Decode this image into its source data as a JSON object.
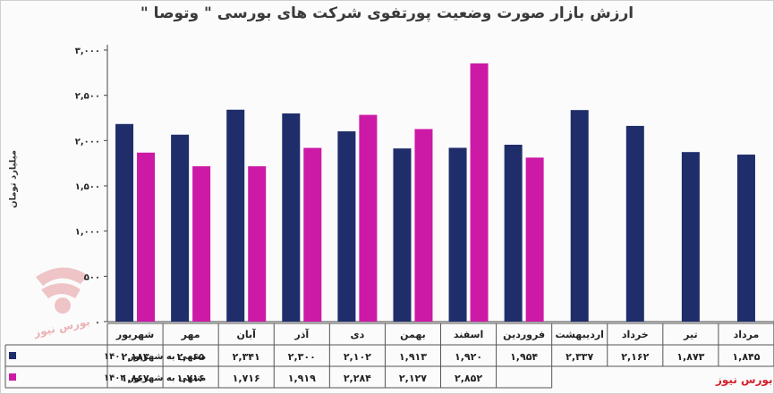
{
  "title": "ارزش بازار صورت وضعیت پورتفوی شرکت های بورسی \" وتوصا \"",
  "brand_text": "بورس نیوز",
  "watermark_text": "بورس نیوز",
  "colors": {
    "series1": "#1f2d6b",
    "series2": "#cc1aa6",
    "brand": "#d6202c"
  },
  "chart_data": {
    "type": "bar",
    "ylabel": "میلیارد تومان",
    "ylim": [
      0,
      3000
    ],
    "yticks": [
      0,
      500,
      1000,
      1500,
      2000,
      2500,
      3000
    ],
    "ytick_labels": [
      "۰",
      "۵۰۰",
      "۱,۰۰۰",
      "۱,۵۰۰",
      "۲,۰۰۰",
      "۲,۵۰۰",
      "۳,۰۰۰"
    ],
    "grid": false,
    "legend": "table-left",
    "categories": [
      "شهریور",
      "مهر",
      "آبان",
      "آذر",
      "دی",
      "بهمن",
      "اسفند",
      "فروردین",
      "اردیبهشت",
      "خرداد",
      "تیر",
      "مرداد"
    ],
    "series": [
      {
        "name": "منتهی به شهریور ۱۴۰۱",
        "values": [
          2183,
          2065,
          2341,
          2300,
          2102,
          1913,
          1920,
          1954,
          2337,
          2162,
          1873,
          1845
        ],
        "labels": [
          "۲,۱۸۳",
          "۲,۰۶۵",
          "۲,۳۴۱",
          "۲,۳۰۰",
          "۲,۱۰۲",
          "۱,۹۱۳",
          "۱,۹۲۰",
          "۱,۹۵۴",
          "۲,۳۳۷",
          "۲,۱۶۲",
          "۱,۸۷۳",
          "۱,۸۴۵"
        ]
      },
      {
        "name": "منتهی به شهریور ۱۴۰۲",
        "values": [
          1867,
          1716,
          1716,
          1919,
          2284,
          2127,
          2852,
          1812,
          null,
          null,
          null,
          null
        ],
        "labels": [
          "۱,۸۶۷",
          "۱,۷۱۶",
          "۱,۷۱۶",
          "۱,۹۱۹",
          "۲,۲۸۴",
          "۲,۱۲۷",
          "۲,۸۵۲",
          "",
          "",
          "",
          "",
          ""
        ]
      }
    ]
  }
}
